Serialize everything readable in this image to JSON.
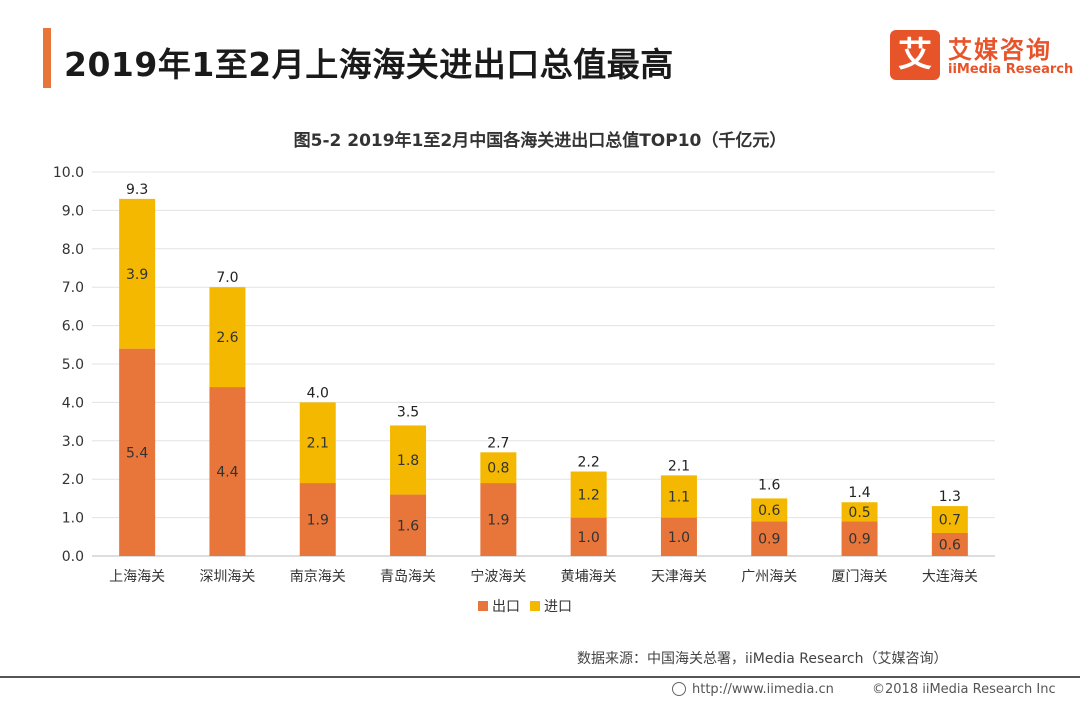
{
  "header": {
    "title": "2019年1至2月上海海关进出口总值最高",
    "logo_mark": "艾",
    "logo_cn": "艾媒咨询",
    "logo_en": "iiMedia Research"
  },
  "colors": {
    "accent": "#e8763a",
    "export": "#e8763a",
    "import": "#f5b800",
    "grid": "#e3e3e3"
  },
  "chart_data": {
    "type": "bar",
    "stacked": true,
    "title": "图5-2 2019年1至2月中国各海关进出口总值TOP10（千亿元）",
    "categories": [
      "上海海关",
      "深圳海关",
      "南京海关",
      "青岛海关",
      "宁波海关",
      "黄埔海关",
      "天津海关",
      "广州海关",
      "厦门海关",
      "大连海关"
    ],
    "series": [
      {
        "name": "出口",
        "color": "#e8763a",
        "values": [
          5.4,
          4.4,
          1.9,
          1.6,
          1.9,
          1.0,
          1.0,
          0.9,
          0.9,
          0.6
        ]
      },
      {
        "name": "进口",
        "color": "#f5b800",
        "values": [
          3.9,
          2.6,
          2.1,
          1.8,
          0.8,
          1.2,
          1.1,
          0.6,
          0.5,
          0.7
        ]
      }
    ],
    "totals": [
      9.3,
      7.0,
      4.0,
      3.5,
      2.7,
      2.2,
      2.1,
      1.6,
      1.4,
      1.3
    ],
    "yticks": [
      "0.0",
      "1.0",
      "2.0",
      "3.0",
      "4.0",
      "5.0",
      "6.0",
      "7.0",
      "8.0",
      "9.0",
      "10.0"
    ],
    "ylim": [
      0,
      10
    ],
    "grid": true,
    "legend_position": "bottom"
  },
  "footer": {
    "source": "数据来源：中国海关总署，iiMedia Research（艾媒咨询）",
    "url": "http://www.iimedia.cn",
    "copyright": "©2018 iiMedia Research Inc"
  }
}
